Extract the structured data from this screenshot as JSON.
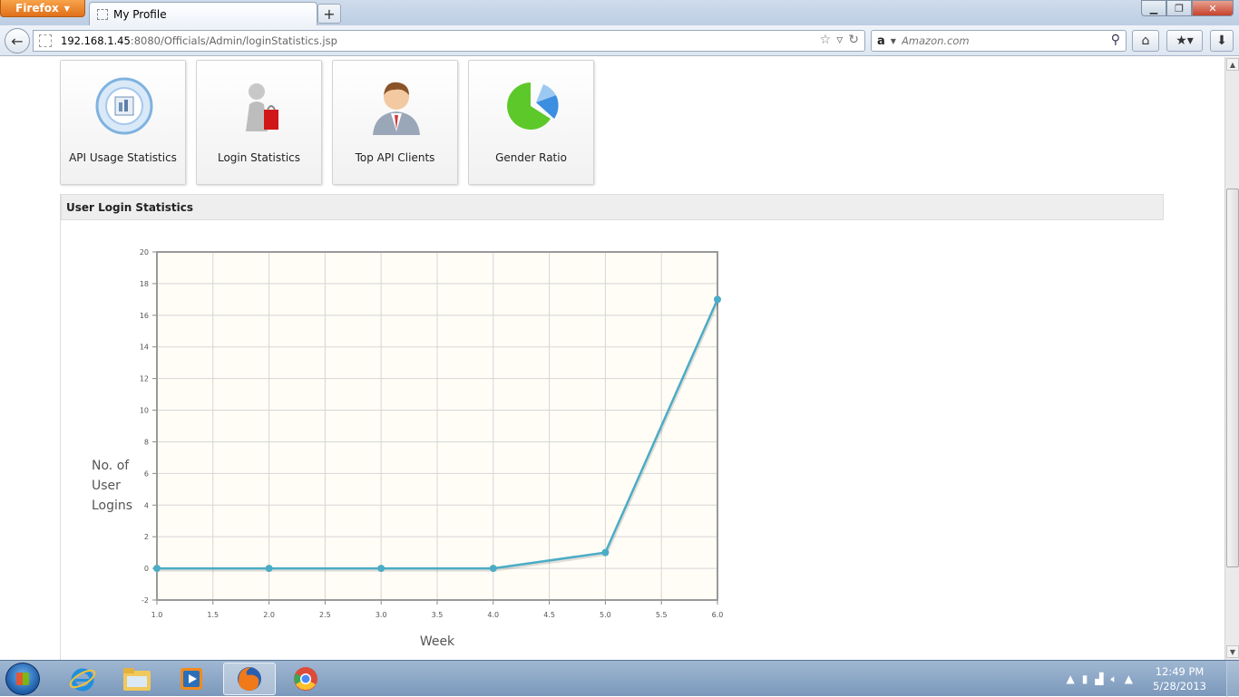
{
  "browser": {
    "app_button": "Firefox",
    "tab_title": "My Profile",
    "url_host": "192.168.1.45",
    "url_rest": ":8080/Officials/Admin/loginStatistics.jsp",
    "search_engine": "a",
    "search_placeholder": "Amazon.com"
  },
  "tiles": [
    {
      "label": "API Usage Statistics",
      "icon": "api-usage-icon"
    },
    {
      "label": "Login Statistics",
      "icon": "login-statistics-icon"
    },
    {
      "label": "Top API Clients",
      "icon": "top-api-clients-icon"
    },
    {
      "label": "Gender Ratio",
      "icon": "gender-ratio-icon"
    }
  ],
  "panel": {
    "title": "User Login Statistics"
  },
  "chart_data": {
    "type": "line",
    "title": "",
    "xlabel": "Week",
    "ylabel_lines": [
      "No. of",
      "User",
      "Logins"
    ],
    "x": [
      1,
      2,
      3,
      4,
      5,
      6
    ],
    "series": [
      {
        "values": [
          0,
          0,
          0,
          0,
          1,
          17
        ],
        "color": "#4bacc6"
      }
    ],
    "xlim": [
      1.0,
      6.0
    ],
    "ylim": [
      -2,
      20
    ],
    "xticks": [
      "1.0",
      "1.5",
      "2.0",
      "2.5",
      "3.0",
      "3.5",
      "4.0",
      "4.5",
      "5.0",
      "5.5",
      "6.0"
    ],
    "yticks": [
      "-2",
      "0",
      "2",
      "4",
      "6",
      "8",
      "10",
      "12",
      "14",
      "16",
      "18",
      "20"
    ],
    "grid": true,
    "background": "#fffdf6"
  },
  "taskbar": {
    "time": "12:49 PM",
    "date": "5/28/2013",
    "apps": [
      "internet-explorer-icon",
      "file-explorer-icon",
      "media-player-icon",
      "firefox-icon",
      "chrome-icon"
    ]
  }
}
